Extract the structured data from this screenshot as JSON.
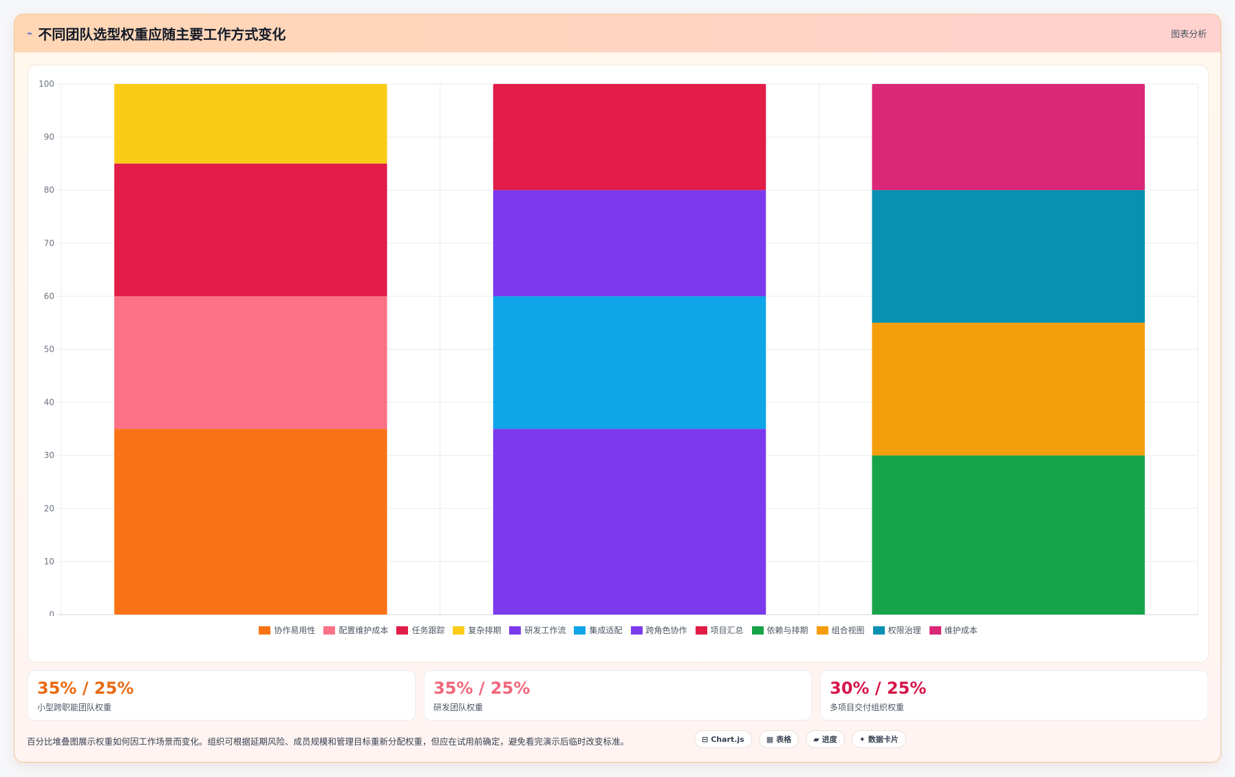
{
  "header": {
    "icon": "trend-line-icon",
    "title": "不同团队选型权重应随主要工作方式变化",
    "link_label": "图表分析"
  },
  "chart_data": {
    "type": "bar",
    "stacked": true,
    "title": "",
    "xlabel": "",
    "ylabel": "",
    "ylim": [
      0,
      100
    ],
    "yticks": [
      0,
      10,
      20,
      30,
      40,
      50,
      60,
      70,
      80,
      90,
      100
    ],
    "grid": true,
    "legend_position": "bottom",
    "categories": [
      "小型跨职能团队权重",
      "研发团队权重",
      "多项目交付组织权重"
    ],
    "series": [
      {
        "name": "协作易用性",
        "color": "#f97316",
        "values": [
          35,
          0,
          0
        ]
      },
      {
        "name": "配置维护成本",
        "color": "#fb7185",
        "values": [
          25,
          0,
          0
        ]
      },
      {
        "name": "任务跟踪",
        "color": "#e11d48",
        "values": [
          25,
          0,
          0
        ]
      },
      {
        "name": "复杂排期",
        "color": "#facc15",
        "values": [
          15,
          0,
          0
        ]
      },
      {
        "name": "研发工作流",
        "color": "#7c3aed",
        "values": [
          0,
          35,
          0
        ]
      },
      {
        "name": "集成适配",
        "color": "#0ea5e9",
        "values": [
          0,
          25,
          0
        ]
      },
      {
        "name": "跨角色协作",
        "color": "#7c3aed",
        "values": [
          0,
          20,
          0
        ]
      },
      {
        "name": "项目汇总",
        "color": "#e11d48",
        "values": [
          0,
          20,
          0
        ]
      },
      {
        "name": "依赖与排期",
        "color": "#16a34a",
        "values": [
          0,
          0,
          30
        ]
      },
      {
        "name": "组合视图",
        "color": "#f59e0b",
        "values": [
          0,
          0,
          25
        ]
      },
      {
        "name": "权限治理",
        "color": "#0891b2",
        "values": [
          0,
          0,
          25
        ]
      },
      {
        "name": "维护成本",
        "color": "#db2777",
        "values": [
          0,
          0,
          20
        ]
      }
    ]
  },
  "stats": [
    {
      "value": "35% / 25%",
      "label": "小型跨职能团队权重",
      "color": "#ea6a12"
    },
    {
      "value": "35% / 25%",
      "label": "研发团队权重",
      "color": "#f0677c"
    },
    {
      "value": "30% / 25%",
      "label": "多项目交付组织权重",
      "color": "#d6164a"
    }
  ],
  "footer": {
    "note": "百分比堆叠图展示权重如何因工作场景而变化。组织可根据延期风险、成员规模和管理目标重新分配权重，但应在试用前确定，避免看完演示后临时改变标准。",
    "chips": [
      {
        "icon": "chart-icon",
        "glyph": "⊟",
        "label": "Chart.js"
      },
      {
        "icon": "table-icon",
        "glyph": "▦",
        "label": "表格"
      },
      {
        "icon": "progress-icon",
        "glyph": "▰",
        "label": "进度"
      },
      {
        "icon": "sparkle-icon",
        "glyph": "✦",
        "label": "数据卡片"
      }
    ]
  }
}
